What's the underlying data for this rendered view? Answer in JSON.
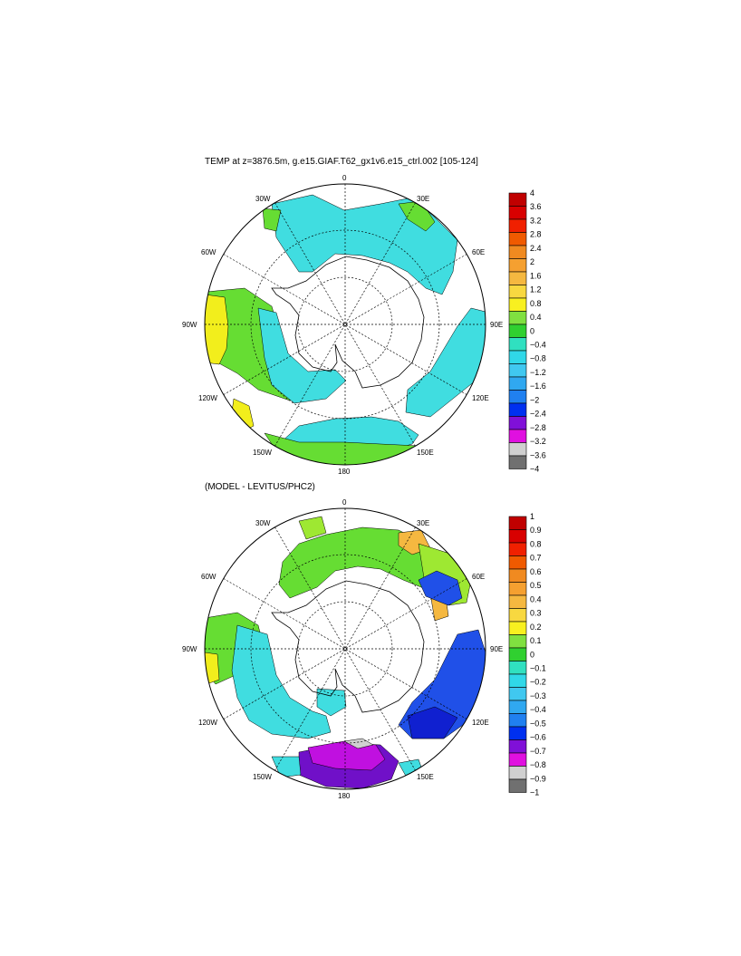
{
  "panels": [
    {
      "title": "TEMP at z=3876.5m, g.e15.GIAF.T62_gx1v6.e15_ctrl.002 [105-124]",
      "lon_labels": {
        "l0": "0",
        "l30e": "30E",
        "l60e": "60E",
        "l90e": "90E",
        "l120e": "120E",
        "l150e": "150E",
        "l180": "180",
        "l150w": "150W",
        "l120w": "120W",
        "l90w": "90W",
        "l60w": "60W",
        "l30w": "30W"
      },
      "colorbar": {
        "levels": [
          "4",
          "3.6",
          "3.2",
          "2.8",
          "2.4",
          "2",
          "1.6",
          "1.2",
          "0.8",
          "0.4",
          "0",
          "−0.4",
          "−0.8",
          "−1.2",
          "−1.6",
          "−2",
          "−2.4",
          "−2.8",
          "−3.2",
          "−3.6",
          "−4"
        ],
        "colors": [
          "#c00000",
          "#d80000",
          "#f02000",
          "#f05a00",
          "#f08a20",
          "#f5a030",
          "#f5b840",
          "#f8d840",
          "#f8f020",
          "#80e040",
          "#30d030",
          "#30e0c0",
          "#30d8e8",
          "#40c8f0",
          "#30a8f0",
          "#2080f0",
          "#0030f0",
          "#8010d8",
          "#e010e0",
          "#d0d0d0",
          "#707070"
        ]
      }
    },
    {
      "title": "(MODEL - LEVITUS/PHC2)",
      "lon_labels": {
        "l0": "0",
        "l30e": "30E",
        "l60e": "60E",
        "l90e": "90E",
        "l120e": "120E",
        "l150e": "150E",
        "l180": "180",
        "l150w": "150W",
        "l120w": "120W",
        "l90w": "90W",
        "l60w": "60W",
        "l30w": "30W"
      },
      "colorbar": {
        "levels": [
          "1",
          "0.9",
          "0.8",
          "0.7",
          "0.6",
          "0.5",
          "0.4",
          "0.3",
          "0.2",
          "0.1",
          "0",
          "−0.1",
          "−0.2",
          "−0.3",
          "−0.4",
          "−0.5",
          "−0.6",
          "−0.7",
          "−0.8",
          "−0.9",
          "−1"
        ],
        "colors": [
          "#c00000",
          "#d80000",
          "#f02000",
          "#f05a00",
          "#f08a20",
          "#f5a030",
          "#f5b840",
          "#f8d840",
          "#f8f020",
          "#80e040",
          "#30d030",
          "#30e0c0",
          "#30d8e8",
          "#40c8f0",
          "#30a8f0",
          "#2080f0",
          "#0030f0",
          "#8010d8",
          "#e010e0",
          "#d0d0d0",
          "#707070"
        ]
      }
    }
  ],
  "field_colors": {
    "cyan": "#40dde0",
    "green": "#66dd33",
    "yellow": "#f2ee1c",
    "lightgreen": "#9ee832",
    "orange": "#f5b840",
    "blue": "#2050e8",
    "darkblue": "#1020d0",
    "magenta": "#c010e0",
    "violet": "#7010c8",
    "lightgray": "#d0d0d0"
  }
}
